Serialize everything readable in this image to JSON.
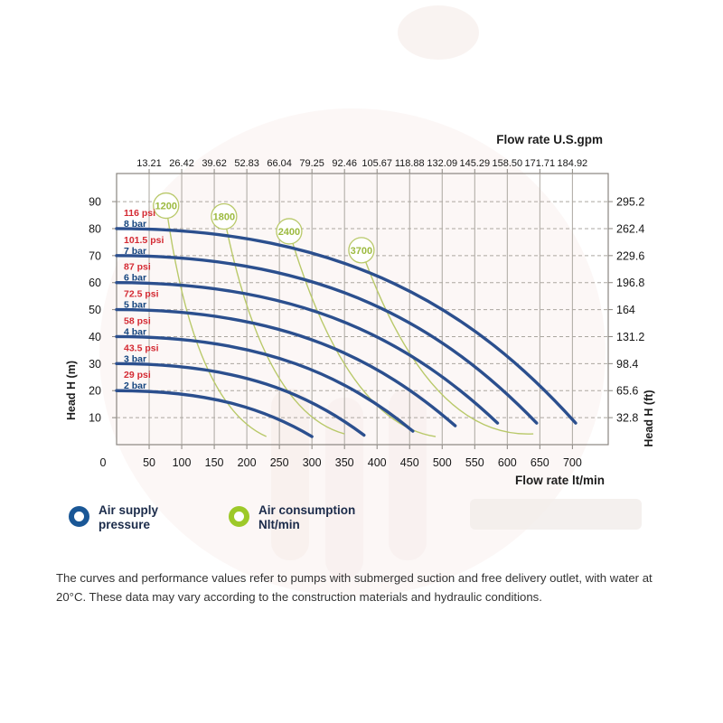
{
  "chart_data": {
    "type": "line",
    "x_axis": {
      "label_bottom": "Flow rate  lt/min",
      "label_top": "Flow rate U.S.gpm",
      "range_lt_min": [
        0,
        755
      ],
      "ticks": [
        0,
        50,
        100,
        150,
        200,
        250,
        300,
        350,
        400,
        450,
        500,
        550,
        600,
        650,
        700
      ],
      "top_tick_labels": [
        "13.21",
        "26.42",
        "39.62",
        "52.83",
        "66.04",
        "79.25",
        "92.46",
        "105.67",
        "118.88",
        "132.09",
        "145.29",
        "158.50",
        "171.71",
        "184.92"
      ]
    },
    "y_axis": {
      "label_left": "Head H (m)",
      "label_right": "Head H (ft)",
      "range_m": [
        0,
        100.4
      ],
      "ticks": [
        90,
        80,
        70,
        60,
        50,
        40,
        30,
        20,
        10
      ],
      "right_tick_labels": [
        "295.2",
        "262.4",
        "229.6",
        "196.8",
        "164",
        "131.2",
        "98.4",
        "65.6",
        "32.8"
      ]
    },
    "grid": true,
    "legend_position": "bottom",
    "series": [
      {
        "name": "8 bar",
        "psi_label": "116 psi",
        "bar_label": "8 bar",
        "head_at_zero_flow_m": 80,
        "max_flow_lt_min": 705,
        "head_at_max_flow_m": 8
      },
      {
        "name": "7 bar",
        "psi_label": "101.5 psi",
        "bar_label": "7 bar",
        "head_at_zero_flow_m": 70,
        "max_flow_lt_min": 645,
        "head_at_max_flow_m": 8
      },
      {
        "name": "6 bar",
        "psi_label": "87 psi",
        "bar_label": "6 bar",
        "head_at_zero_flow_m": 60,
        "max_flow_lt_min": 585,
        "head_at_max_flow_m": 8
      },
      {
        "name": "5 bar",
        "psi_label": "72.5 psi",
        "bar_label": "5 bar",
        "head_at_zero_flow_m": 50,
        "max_flow_lt_min": 520,
        "head_at_max_flow_m": 7
      },
      {
        "name": "4 bar",
        "psi_label": "58 psi",
        "bar_label": "4 bar",
        "head_at_zero_flow_m": 40,
        "max_flow_lt_min": 455,
        "head_at_max_flow_m": 5
      },
      {
        "name": "3 bar",
        "psi_label": "43.5 psi",
        "bar_label": "3 bar",
        "head_at_zero_flow_m": 30,
        "max_flow_lt_min": 380,
        "head_at_max_flow_m": 3.5
      },
      {
        "name": "2 bar",
        "psi_label": "29 psi",
        "bar_label": "2 bar",
        "head_at_zero_flow_m": 20,
        "max_flow_lt_min": 300,
        "head_at_max_flow_m": 3
      }
    ],
    "air_consumption_contours": [
      {
        "label": "1200",
        "circle_at": [
          76,
          88.5
        ],
        "line_ctrl": [
          118,
          15
        ],
        "line_end": [
          230,
          3
        ]
      },
      {
        "label": "1800",
        "circle_at": [
          165,
          84.5
        ],
        "line_ctrl": [
          225,
          12
        ],
        "line_end": [
          350,
          4
        ]
      },
      {
        "label": "2400",
        "circle_at": [
          265,
          79
        ],
        "line_ctrl": [
          352,
          8
        ],
        "line_end": [
          490,
          3
        ]
      },
      {
        "label": "3700",
        "circle_at": [
          376,
          72
        ],
        "line_ctrl": [
          480,
          2
        ],
        "line_end": [
          640,
          4
        ]
      }
    ],
    "colors": {
      "curve_blue": "#2b4f8e",
      "psi_red": "#d42a33",
      "bar_blue": "#15457f",
      "contour_green": "#b9c96a",
      "contour_text_green": "#9cba3f",
      "grid": "#aba7a0",
      "border": "#8a8680"
    }
  },
  "legend": {
    "items": [
      {
        "lines": [
          "Air supply",
          "pressure"
        ],
        "ring_color": "#1a5796"
      },
      {
        "lines": [
          "Air consumption",
          "Nlt/min"
        ],
        "ring_color": "#9dc929"
      }
    ]
  },
  "footer": {
    "text": "The curves and performance values refer to pumps with submerged suction and free delivery outlet, with water at 20°C. These data may vary according to the construction materials and hydraulic conditions."
  }
}
